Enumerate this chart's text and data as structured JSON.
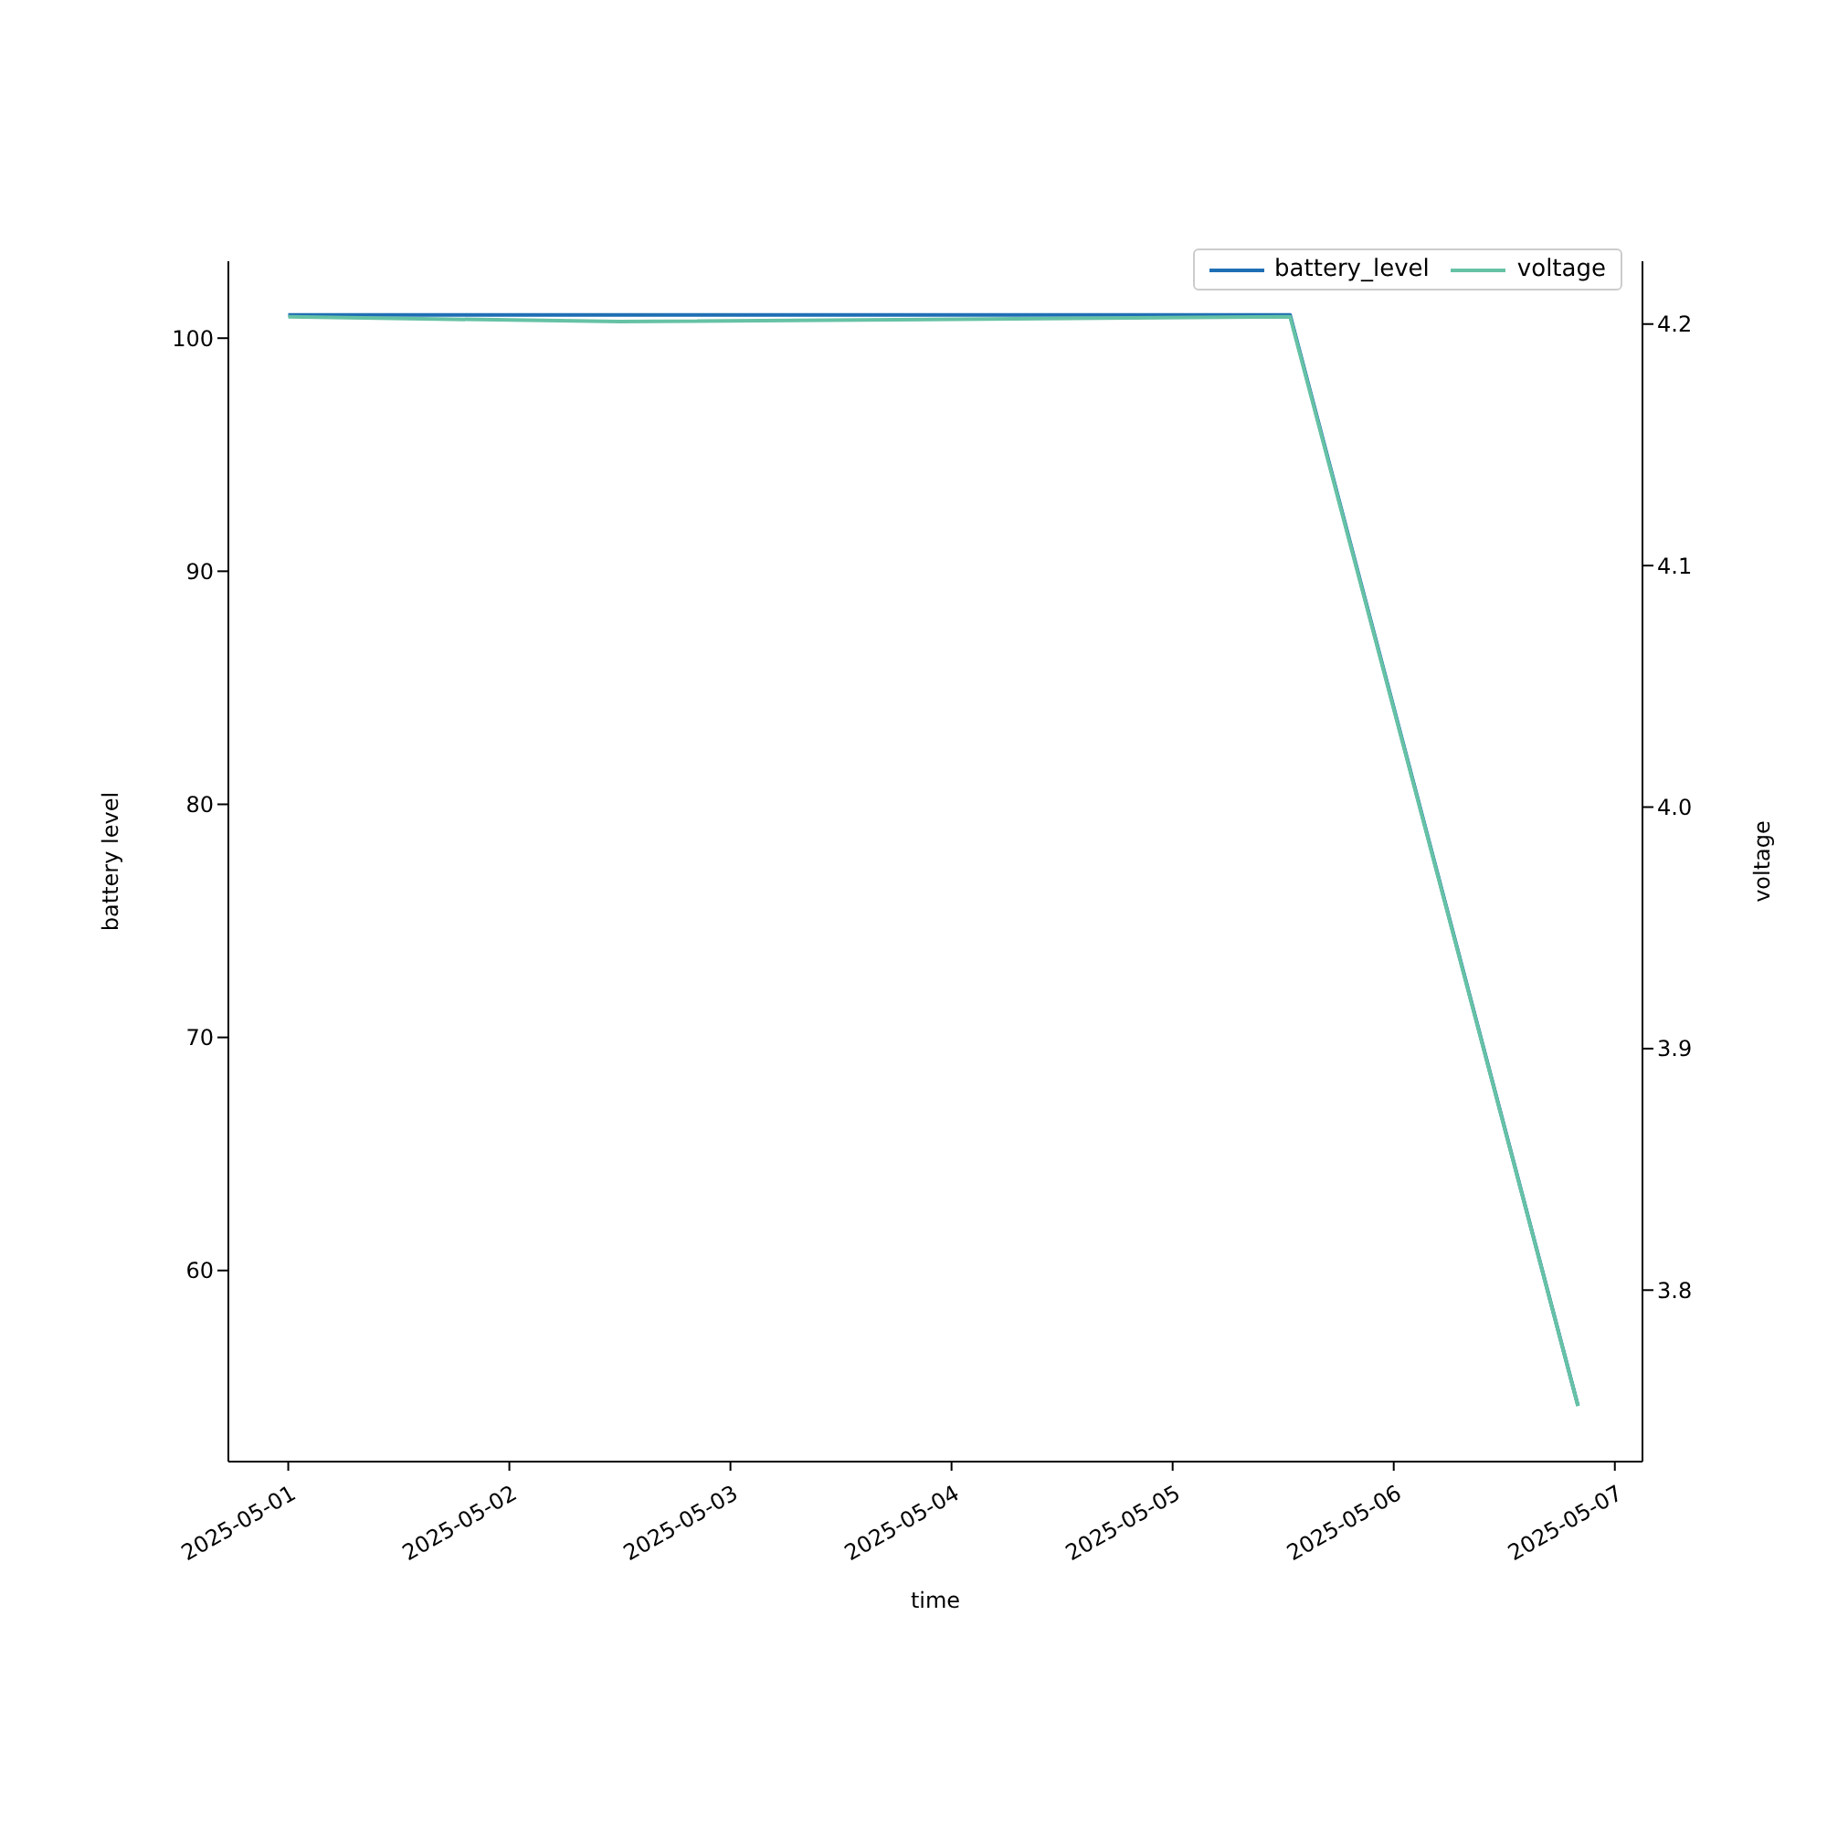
{
  "chart_data": {
    "type": "line",
    "xlabel": "time",
    "ylabel": "battery level",
    "y2label": "voltage",
    "series": [
      {
        "name": "battery_level",
        "color": "#1f6fb4",
        "x": [
          "2025-05-01T00:00",
          "2025-05-05T12:45",
          "2025-05-06T20:00"
        ],
        "values": [
          101,
          101,
          54.2
        ]
      },
      {
        "name": "voltage",
        "color": "#66c2a5",
        "axis": "y2",
        "x": [
          "2025-05-01T00:00",
          "2025-05-02T12:00",
          "2025-05-05T12:45",
          "2025-05-06T20:00"
        ],
        "values": [
          4.203,
          4.201,
          4.203,
          3.752
        ]
      }
    ],
    "xlim": [
      "2025-04-30T17:30",
      "2025-05-07T03:00"
    ],
    "xticks": [
      "2025-05-01",
      "2025-05-02",
      "2025-05-03",
      "2025-05-04",
      "2025-05-05",
      "2025-05-06",
      "2025-05-07"
    ],
    "ylim": [
      51.8,
      103.3
    ],
    "yticks": [
      60,
      70,
      80,
      90,
      100
    ],
    "y2lim": [
      3.729,
      4.226
    ],
    "y2ticks": [
      {
        "value": 3.8,
        "label": "3.8"
      },
      {
        "value": 3.9,
        "label": "3.9"
      },
      {
        "value": 4,
        "label": "4.0"
      },
      {
        "value": 4.1,
        "label": "4.1"
      },
      {
        "value": 4.2,
        "label": "4.2"
      }
    ],
    "legend": "top right",
    "grid": false,
    "marker": "none",
    "line_style": "solid"
  }
}
